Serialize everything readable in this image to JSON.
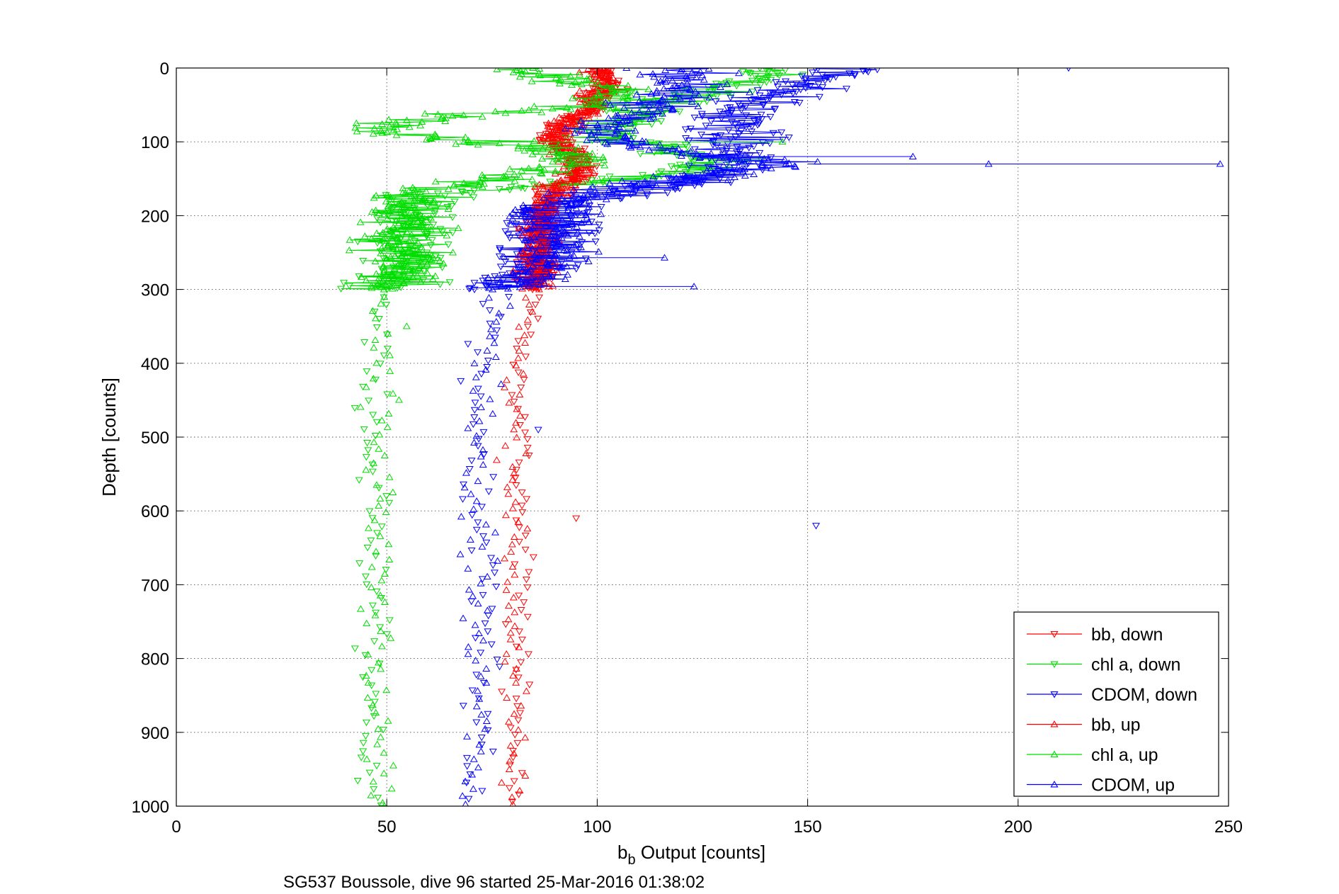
{
  "chart_data": {
    "type": "scatter",
    "xlabel_main": "b",
    "xlabel_sub": "b",
    "xlabel_rest": " Output [counts]",
    "ylabel": "Depth [counts]",
    "footer": "SG537 Boussole, dive 96 started 25-Mar-2016 01:38:02",
    "xlim": [
      0,
      250
    ],
    "ylim": [
      0,
      1000
    ],
    "y_reversed": true,
    "grid": true,
    "legend_position": "bottom-right",
    "x_ticks": [
      0,
      50,
      100,
      150,
      200,
      250
    ],
    "y_ticks": [
      0,
      100,
      200,
      300,
      400,
      500,
      600,
      700,
      800,
      900,
      1000
    ],
    "series": [
      {
        "name": "bb, down",
        "color": "#ff0000",
        "marker": "triangle-down",
        "direction": "down",
        "profile": [
          [
            0,
            100
          ],
          [
            20,
            103
          ],
          [
            40,
            101
          ],
          [
            60,
            97
          ],
          [
            80,
            92
          ],
          [
            100,
            90
          ],
          [
            120,
            95
          ],
          [
            140,
            96
          ],
          [
            160,
            92
          ],
          [
            180,
            89
          ],
          [
            200,
            87
          ],
          [
            220,
            87
          ],
          [
            250,
            86
          ],
          [
            280,
            86
          ],
          [
            300,
            85
          ],
          [
            350,
            84
          ],
          [
            400,
            83
          ],
          [
            450,
            82
          ],
          [
            500,
            82
          ],
          [
            600,
            82
          ],
          [
            700,
            82
          ],
          [
            800,
            81
          ],
          [
            900,
            81
          ],
          [
            1000,
            81
          ]
        ],
        "outliers": [
          [
            95,
            610
          ]
        ]
      },
      {
        "name": "chl a, down",
        "color": "#00dd00",
        "marker": "triangle-down",
        "direction": "down",
        "profile": [
          [
            0,
            143
          ],
          [
            20,
            135
          ],
          [
            40,
            120
          ],
          [
            60,
            110
          ],
          [
            80,
            103
          ],
          [
            100,
            105
          ],
          [
            110,
            120
          ],
          [
            130,
            128
          ],
          [
            150,
            110
          ],
          [
            160,
            85
          ],
          [
            170,
            62
          ],
          [
            190,
            55
          ],
          [
            220,
            54
          ],
          [
            260,
            54
          ],
          [
            280,
            53
          ],
          [
            300,
            47
          ],
          [
            350,
            47
          ],
          [
            400,
            47
          ],
          [
            500,
            47
          ],
          [
            600,
            47
          ],
          [
            700,
            47
          ],
          [
            800,
            46
          ],
          [
            900,
            47
          ],
          [
            1000,
            47
          ]
        ],
        "outliers": []
      },
      {
        "name": "CDOM, down",
        "color": "#0000ff",
        "marker": "triangle-down",
        "direction": "down",
        "profile": [
          [
            0,
            160
          ],
          [
            20,
            152
          ],
          [
            40,
            140
          ],
          [
            60,
            133
          ],
          [
            80,
            132
          ],
          [
            100,
            132
          ],
          [
            130,
            131
          ],
          [
            150,
            125
          ],
          [
            170,
            108
          ],
          [
            190,
            92
          ],
          [
            200,
            88
          ],
          [
            250,
            88
          ],
          [
            290,
            80
          ],
          [
            300,
            76
          ],
          [
            350,
            74
          ],
          [
            400,
            72
          ],
          [
            500,
            72
          ],
          [
            600,
            72
          ],
          [
            700,
            73
          ],
          [
            800,
            73
          ],
          [
            900,
            72
          ],
          [
            1000,
            72
          ]
        ],
        "outliers": [
          [
            212,
            0
          ],
          [
            152,
            620
          ],
          [
            86,
            490
          ]
        ]
      },
      {
        "name": "bb, up",
        "color": "#ff0000",
        "marker": "triangle-up",
        "direction": "up",
        "profile": [
          [
            0,
            100
          ],
          [
            20,
            102
          ],
          [
            40,
            99
          ],
          [
            60,
            96
          ],
          [
            80,
            91
          ],
          [
            100,
            90
          ],
          [
            120,
            95
          ],
          [
            140,
            95
          ],
          [
            160,
            90
          ],
          [
            180,
            88
          ],
          [
            200,
            87
          ],
          [
            250,
            86
          ],
          [
            290,
            85
          ],
          [
            300,
            85
          ],
          [
            350,
            83
          ],
          [
            400,
            81
          ],
          [
            500,
            80
          ],
          [
            600,
            80
          ],
          [
            700,
            80
          ],
          [
            800,
            80
          ],
          [
            900,
            80
          ],
          [
            1000,
            80
          ]
        ],
        "outliers": []
      },
      {
        "name": "chl a, up",
        "color": "#00dd00",
        "marker": "triangle-up",
        "direction": "up",
        "profile": [
          [
            0,
            78
          ],
          [
            15,
            95
          ],
          [
            30,
            105
          ],
          [
            50,
            100
          ],
          [
            65,
            65
          ],
          [
            80,
            50
          ],
          [
            95,
            65
          ],
          [
            110,
            90
          ],
          [
            130,
            95
          ],
          [
            150,
            80
          ],
          [
            165,
            60
          ],
          [
            180,
            52
          ],
          [
            200,
            55
          ],
          [
            230,
            53
          ],
          [
            260,
            55
          ],
          [
            290,
            52
          ],
          [
            300,
            48
          ],
          [
            350,
            48
          ],
          [
            400,
            47
          ],
          [
            500,
            48
          ],
          [
            600,
            48
          ],
          [
            700,
            47
          ],
          [
            800,
            47
          ],
          [
            900,
            47
          ],
          [
            1000,
            48
          ]
        ],
        "outliers": [
          [
            144,
            100
          ]
        ]
      },
      {
        "name": "CDOM, up",
        "color": "#0000ff",
        "marker": "triangle-up",
        "direction": "up",
        "profile": [
          [
            0,
            120
          ],
          [
            20,
            123
          ],
          [
            40,
            118
          ],
          [
            60,
            110
          ],
          [
            80,
            100
          ],
          [
            100,
            105
          ],
          [
            120,
            125
          ],
          [
            130,
            150
          ],
          [
            150,
            120
          ],
          [
            170,
            100
          ],
          [
            190,
            90
          ],
          [
            200,
            89
          ],
          [
            240,
            90
          ],
          [
            270,
            88
          ],
          [
            300,
            78
          ],
          [
            350,
            76
          ],
          [
            400,
            73
          ],
          [
            500,
            71
          ],
          [
            600,
            72
          ],
          [
            700,
            72
          ],
          [
            800,
            72
          ],
          [
            900,
            71
          ],
          [
            1000,
            70
          ]
        ],
        "outliers": [
          [
            248,
            130
          ],
          [
            193,
            130
          ],
          [
            175,
            120
          ],
          [
            116,
            257
          ],
          [
            123,
            296
          ]
        ]
      }
    ]
  }
}
